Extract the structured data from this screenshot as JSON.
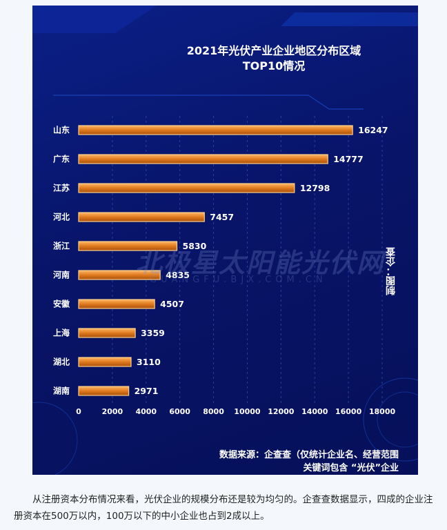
{
  "chart_data": {
    "type": "bar",
    "orientation": "horizontal",
    "title": "2021年光伏产业企业地区分布区域",
    "subtitle": "TOP10情况",
    "categories": [
      "山东",
      "广东",
      "江苏",
      "河北",
      "浙江",
      "河南",
      "安徽",
      "上海",
      "湖北",
      "湖南"
    ],
    "values": [
      16247,
      14777,
      12798,
      7457,
      5830,
      4835,
      4507,
      3359,
      3110,
      2971
    ],
    "x_ticks": [
      "0",
      "2000",
      "4000",
      "6000",
      "8000",
      "10000",
      "12000",
      "14000",
      "16000",
      "18000"
    ],
    "xlim": [
      0,
      18000
    ],
    "grid": "vertical-dashed",
    "bar_color": "#e07a1e",
    "bar_edge_color": "#ffd089",
    "background_color": "#0a1a7a"
  },
  "source": {
    "line1": "数据来源：企查查（仅统计企业名、经营范围",
    "line2": "关键词包含 “光伏”企业"
  },
  "stamp": "制图：企查",
  "watermark": {
    "cn": "北极星太阳能光伏网",
    "en": "GUANGFU.BJX.COM.CN"
  },
  "caption": "从注册资本分布情况来看，光伏企业的规模分布还是较为均匀的。企查查数据显示，四成的企业注册资本在500万以内，100万以下的中小企业也占到2成以上。"
}
